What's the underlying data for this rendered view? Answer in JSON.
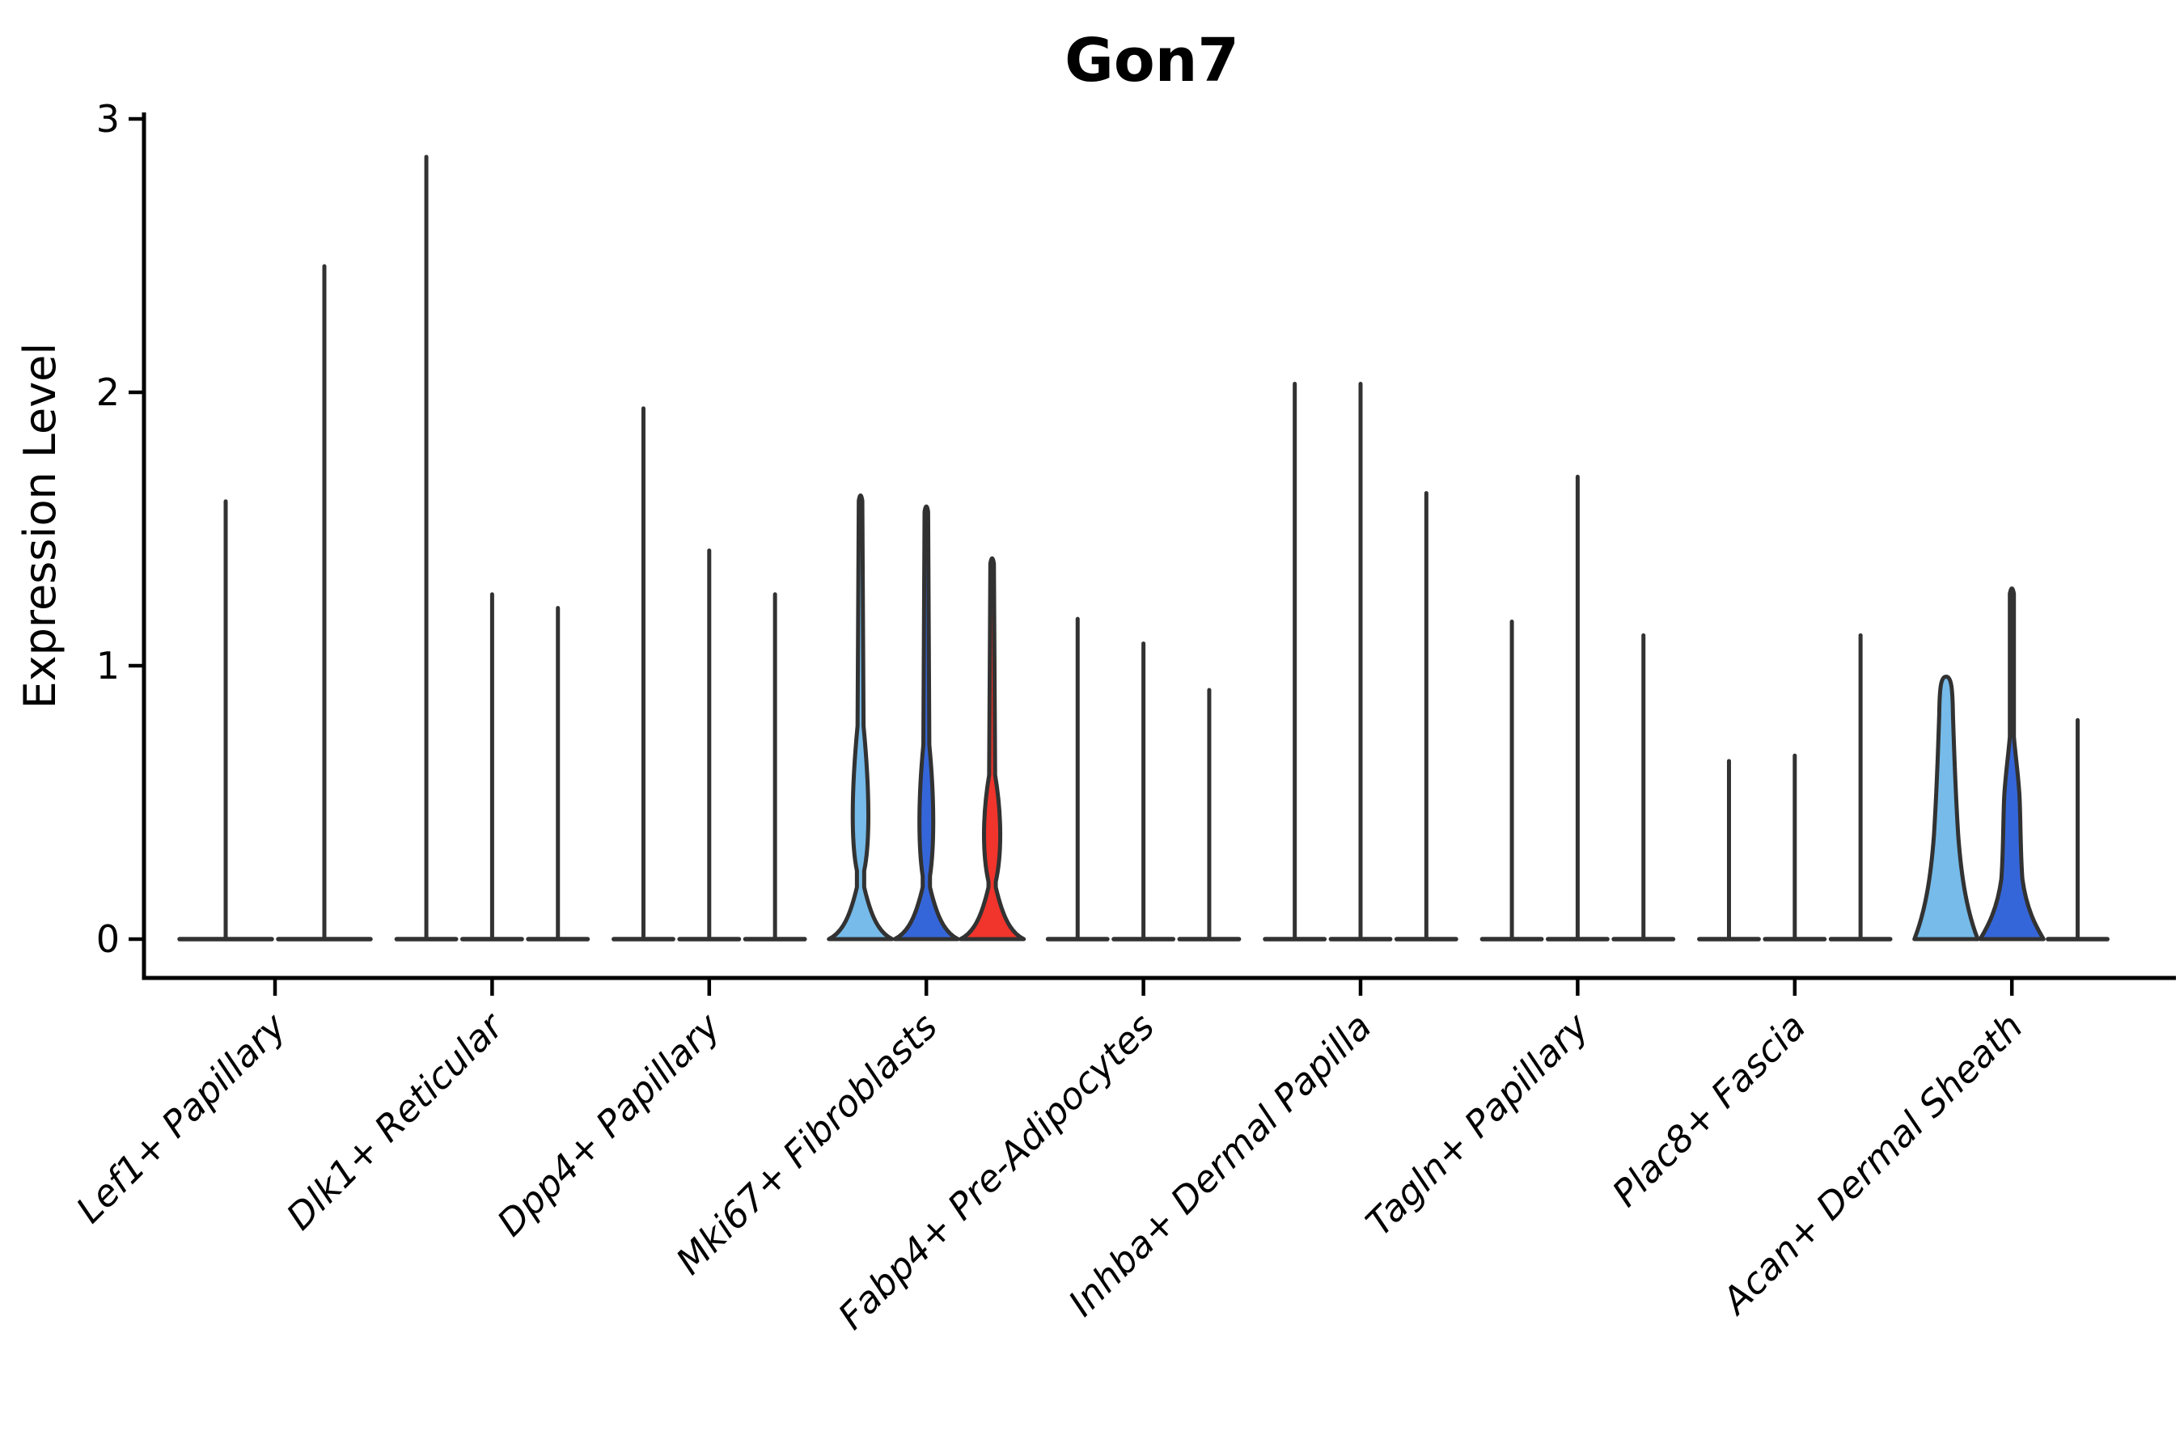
{
  "chart_data": {
    "type": "violin",
    "title": "Gon7",
    "ylabel": "Expression Level",
    "xlabel": "",
    "ylim": [
      0,
      3
    ],
    "yticks": [
      0,
      1,
      2,
      3
    ],
    "grid": false,
    "legend": "none",
    "colors": {
      "light_blue": "#76BBE9",
      "blue": "#3566D9",
      "red": "#F1342C",
      "violin_outline": "#323232",
      "axis": "#000000"
    },
    "categories": [
      "Lef1+ Papillary",
      "Dlk1+ Reticular",
      "Dpp4+ Papillary",
      "Mki67+ Fibroblasts",
      "Fabp4+ Pre-Adipocytes",
      "Inhba+ Dermal Papilla",
      "Tagln+ Papillary",
      "Plac8+ Fascia",
      "Acan+ Dermal Sheath"
    ],
    "groups": [
      {
        "category": "Lef1+ Papillary",
        "violins": [
          {
            "shape": "spike",
            "max": 1.61
          },
          {
            "shape": "spike",
            "max": 2.47
          }
        ]
      },
      {
        "category": "Dlk1+ Reticular",
        "violins": [
          {
            "shape": "spike",
            "max": 2.87
          },
          {
            "shape": "spike",
            "max": 1.27
          },
          {
            "shape": "spike",
            "max": 1.22
          }
        ]
      },
      {
        "category": "Dpp4+ Papillary",
        "violins": [
          {
            "shape": "spike",
            "max": 1.95
          },
          {
            "shape": "spike",
            "max": 1.43
          },
          {
            "shape": "spike",
            "max": 1.27
          }
        ]
      },
      {
        "category": "Mki67+ Fibroblasts",
        "violins": [
          {
            "shape": "fusiform",
            "max": 1.63,
            "fill": "#76BBE9",
            "bulge_bottom": 0.25,
            "bulge_peak": 0.43,
            "bulge_top": 0.78,
            "bulge_halfwidth": 11.5
          },
          {
            "shape": "fusiform",
            "max": 1.59,
            "fill": "#3566D9",
            "bulge_bottom": 0.23,
            "bulge_peak": 0.43,
            "bulge_top": 0.71,
            "bulge_halfwidth": 10
          },
          {
            "shape": "fusiform",
            "max": 1.4,
            "fill": "#F1342C",
            "bulge_bottom": 0.21,
            "bulge_peak": 0.39,
            "bulge_top": 0.6,
            "bulge_halfwidth": 12
          }
        ]
      },
      {
        "category": "Fabp4+ Pre-Adipocytes",
        "violins": [
          {
            "shape": "spike",
            "max": 1.18
          },
          {
            "shape": "spike",
            "max": 1.09
          },
          {
            "shape": "spike",
            "max": 0.92
          }
        ]
      },
      {
        "category": "Inhba+ Dermal Papilla",
        "violins": [
          {
            "shape": "spike",
            "max": 2.04
          },
          {
            "shape": "spike",
            "max": 2.04
          },
          {
            "shape": "spike",
            "max": 1.64
          }
        ]
      },
      {
        "category": "Tagln+ Papillary",
        "violins": [
          {
            "shape": "spike",
            "max": 1.17
          },
          {
            "shape": "spike",
            "max": 1.7
          },
          {
            "shape": "spike",
            "max": 1.12
          }
        ]
      },
      {
        "category": "Plac8+ Fascia",
        "violins": [
          {
            "shape": "spike",
            "max": 0.66
          },
          {
            "shape": "spike",
            "max": 0.68
          },
          {
            "shape": "spike",
            "max": 1.12
          }
        ]
      },
      {
        "category": "Acan+ Dermal Sheath",
        "violins": [
          {
            "shape": "cone",
            "max": 0.96,
            "fill": "#76BBE9"
          },
          {
            "shape": "column",
            "max": 1.29,
            "fill": "#3566D9"
          },
          {
            "shape": "spike",
            "max": 0.81
          }
        ]
      }
    ]
  }
}
